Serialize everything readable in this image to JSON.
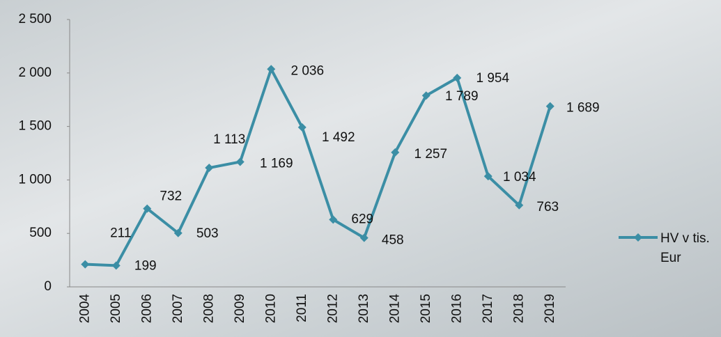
{
  "chart_data": {
    "type": "line",
    "categories": [
      "2004",
      "2005",
      "2006",
      "2007",
      "2008",
      "2009",
      "2010",
      "2011",
      "2012",
      "2013",
      "2014",
      "2015",
      "2016",
      "2017",
      "2018",
      "2019"
    ],
    "series": [
      {
        "name": "HV v tis. Eur",
        "color": "#3b8ea5",
        "values": [
          211,
          199,
          732,
          503,
          1113,
          1169,
          2036,
          1492,
          629,
          458,
          1257,
          1789,
          1954,
          1034,
          763,
          1689
        ],
        "value_labels": [
          "211",
          "199",
          "732",
          "503",
          "1 113",
          "1 169",
          "2 036",
          "1 492",
          "629",
          "458",
          "1 257",
          "1 789",
          "1 954",
          "1 034",
          "763",
          "1 689"
        ]
      }
    ],
    "ylim": [
      0,
      2500
    ],
    "yticks": [
      0,
      500,
      {
        "value": 1000,
        "label": "1 000"
      },
      {
        "value": 1500,
        "label": "1 500"
      },
      {
        "value": 2000,
        "label": "2 000"
      },
      {
        "value": 2500,
        "label": "2 500"
      }
    ],
    "grid": false,
    "legend": "right"
  }
}
